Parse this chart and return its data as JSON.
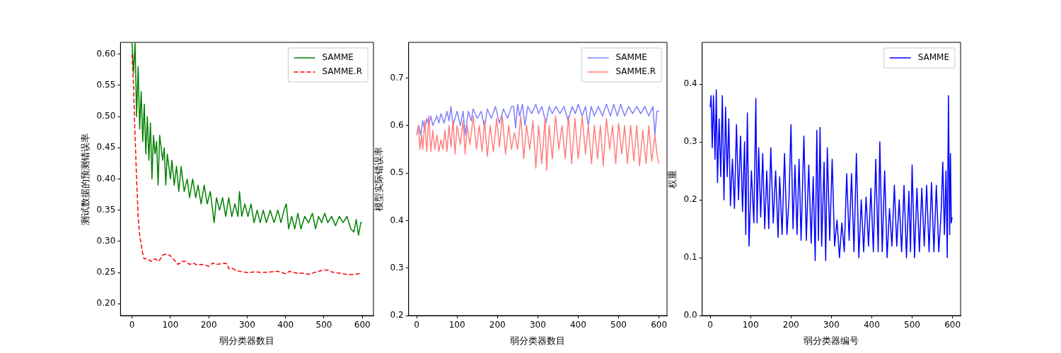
{
  "chart_data": [
    {
      "type": "line",
      "xlabel": "弱分类器数目",
      "ylabel": "测试数据的预测错误率",
      "xlim": [
        -30,
        629
      ],
      "xticks": [
        0,
        100,
        200,
        300,
        400,
        500,
        600
      ],
      "ylim": [
        0.181,
        0.619
      ],
      "yticks": [
        {
          "value": 0.2,
          "label": "0.20"
        },
        {
          "value": 0.25,
          "label": "0.25"
        },
        {
          "value": 0.3,
          "label": "0.30"
        },
        {
          "value": 0.35,
          "label": "0.35"
        },
        {
          "value": 0.4,
          "label": "0.40"
        },
        {
          "value": 0.45,
          "label": "0.45"
        },
        {
          "value": 0.5,
          "label": "0.50"
        },
        {
          "value": 0.55,
          "label": "0.55"
        },
        {
          "value": 0.6,
          "label": "0.60"
        }
      ],
      "legend": "top right",
      "grid": false,
      "series": [
        {
          "name": "SAMME",
          "color": "#008000",
          "line_style": "solid",
          "x": [
            0,
            4,
            8,
            12,
            16,
            20,
            24,
            28,
            32,
            36,
            40,
            44,
            48,
            52,
            56,
            60,
            64,
            68,
            72,
            80,
            84,
            88,
            92,
            100,
            104,
            110,
            116,
            122,
            128,
            136,
            144,
            150,
            158,
            166,
            172,
            180,
            188,
            196,
            204,
            210,
            214,
            220,
            228,
            236,
            244,
            252,
            260,
            268,
            276,
            280,
            286,
            294,
            302,
            310,
            318,
            326,
            334,
            342,
            350,
            360,
            370,
            380,
            388,
            396,
            402,
            408,
            416,
            424,
            432,
            440,
            450,
            460,
            470,
            478,
            486,
            494,
            502,
            510,
            520,
            530,
            540,
            550,
            560,
            570,
            578,
            584,
            590,
            596,
            599
          ],
          "values": [
            0.618,
            0.57,
            0.618,
            0.5,
            0.58,
            0.48,
            0.54,
            0.46,
            0.52,
            0.44,
            0.5,
            0.43,
            0.49,
            0.4,
            0.47,
            0.44,
            0.46,
            0.39,
            0.47,
            0.43,
            0.45,
            0.39,
            0.44,
            0.4,
            0.43,
            0.39,
            0.42,
            0.38,
            0.42,
            0.38,
            0.4,
            0.37,
            0.4,
            0.37,
            0.39,
            0.36,
            0.39,
            0.36,
            0.38,
            0.35,
            0.33,
            0.37,
            0.35,
            0.37,
            0.34,
            0.37,
            0.34,
            0.36,
            0.34,
            0.38,
            0.34,
            0.36,
            0.34,
            0.36,
            0.33,
            0.35,
            0.33,
            0.35,
            0.33,
            0.35,
            0.33,
            0.35,
            0.33,
            0.35,
            0.36,
            0.32,
            0.34,
            0.32,
            0.345,
            0.32,
            0.34,
            0.33,
            0.345,
            0.32,
            0.34,
            0.33,
            0.345,
            0.33,
            0.34,
            0.325,
            0.34,
            0.33,
            0.34,
            0.32,
            0.315,
            0.335,
            0.31,
            0.33,
            0.33
          ]
        },
        {
          "name": "SAMME.R",
          "color": "#ff0000",
          "line_style": "dashed",
          "x": [
            0,
            4,
            8,
            12,
            16,
            20,
            24,
            28,
            32,
            40,
            50,
            60,
            70,
            80,
            90,
            100,
            110,
            120,
            130,
            140,
            150,
            160,
            170,
            180,
            190,
            200,
            210,
            220,
            230,
            240,
            248,
            252,
            260,
            270,
            280,
            290,
            300,
            320,
            340,
            360,
            380,
            390,
            400,
            410,
            430,
            450,
            460,
            480,
            500,
            510,
            520,
            540,
            560,
            580,
            599
          ],
          "values": [
            0.6,
            0.55,
            0.47,
            0.4,
            0.34,
            0.31,
            0.295,
            0.28,
            0.272,
            0.272,
            0.268,
            0.272,
            0.268,
            0.278,
            0.28,
            0.277,
            0.27,
            0.263,
            0.268,
            0.268,
            0.263,
            0.265,
            0.262,
            0.263,
            0.262,
            0.26,
            0.265,
            0.263,
            0.264,
            0.265,
            0.264,
            0.256,
            0.257,
            0.254,
            0.252,
            0.251,
            0.25,
            0.251,
            0.25,
            0.251,
            0.252,
            0.25,
            0.248,
            0.252,
            0.249,
            0.249,
            0.247,
            0.251,
            0.254,
            0.254,
            0.251,
            0.249,
            0.247,
            0.247,
            0.249
          ]
        }
      ]
    },
    {
      "type": "line",
      "xlabel": "弱分类器数目",
      "ylabel": "模型实际错误率",
      "xlim": [
        -20,
        620
      ],
      "xticks": [
        0,
        100,
        200,
        300,
        400,
        500,
        600
      ],
      "ylim": [
        0.2,
        0.775
      ],
      "yticks": [
        0.2,
        0.3,
        0.4,
        0.5,
        0.6,
        0.7
      ],
      "legend": "top right",
      "grid": false,
      "series": [
        {
          "name": "SAMME",
          "color": "#8080ff",
          "line_style": "solid",
          "x": [
            0,
            5,
            10,
            15,
            20,
            25,
            30,
            35,
            40,
            50,
            55,
            60,
            68,
            75,
            80,
            85,
            90,
            100,
            108,
            115,
            120,
            128,
            135,
            140,
            150,
            160,
            168,
            175,
            185,
            195,
            205,
            215,
            225,
            235,
            240,
            245,
            250,
            255,
            262,
            268,
            275,
            285,
            295,
            302,
            310,
            320,
            328,
            336,
            345,
            355,
            365,
            375,
            385,
            393,
            400,
            410,
            418,
            425,
            432,
            440,
            450,
            460,
            470,
            480,
            488,
            497,
            505,
            515,
            525,
            535,
            545,
            555,
            565,
            575,
            585,
            590,
            595,
            600
          ],
          "values": [
            0.58,
            0.6,
            0.58,
            0.61,
            0.59,
            0.615,
            0.6,
            0.62,
            0.6,
            0.62,
            0.605,
            0.625,
            0.605,
            0.63,
            0.61,
            0.64,
            0.6,
            0.63,
            0.6,
            0.63,
            0.58,
            0.63,
            0.61,
            0.635,
            0.615,
            0.63,
            0.595,
            0.635,
            0.615,
            0.64,
            0.605,
            0.635,
            0.615,
            0.64,
            0.64,
            0.595,
            0.645,
            0.62,
            0.645,
            0.6,
            0.64,
            0.625,
            0.645,
            0.625,
            0.64,
            0.605,
            0.64,
            0.625,
            0.64,
            0.625,
            0.64,
            0.61,
            0.64,
            0.625,
            0.645,
            0.62,
            0.64,
            0.6,
            0.64,
            0.62,
            0.64,
            0.62,
            0.645,
            0.62,
            0.645,
            0.62,
            0.645,
            0.62,
            0.64,
            0.625,
            0.64,
            0.625,
            0.64,
            0.62,
            0.64,
            0.58,
            0.63,
            0.63
          ]
        },
        {
          "name": "SAMME.R",
          "color": "#ff8080",
          "line_style": "solid",
          "x": [
            0,
            4,
            8,
            12,
            15,
            20,
            25,
            30,
            35,
            40,
            45,
            50,
            55,
            60,
            65,
            70,
            75,
            80,
            85,
            90,
            95,
            100,
            108,
            115,
            120,
            125,
            132,
            140,
            148,
            155,
            162,
            168,
            175,
            182,
            190,
            198,
            205,
            212,
            220,
            228,
            235,
            242,
            250,
            258,
            265,
            272,
            280,
            288,
            295,
            302,
            310,
            318,
            322,
            328,
            336,
            344,
            352,
            360,
            368,
            376,
            384,
            392,
            400,
            410,
            418,
            425,
            433,
            440,
            448,
            455,
            462,
            470,
            478,
            485,
            493,
            500,
            508,
            515,
            522,
            530,
            538,
            545,
            552,
            560,
            568,
            575,
            582,
            590,
            595,
            600
          ],
          "values": [
            0.58,
            0.6,
            0.55,
            0.58,
            0.55,
            0.61,
            0.545,
            0.62,
            0.545,
            0.59,
            0.55,
            0.58,
            0.545,
            0.57,
            0.55,
            0.59,
            0.545,
            0.6,
            0.555,
            0.61,
            0.54,
            0.6,
            0.56,
            0.61,
            0.54,
            0.6,
            0.56,
            0.62,
            0.55,
            0.6,
            0.545,
            0.61,
            0.535,
            0.6,
            0.545,
            0.615,
            0.555,
            0.62,
            0.54,
            0.6,
            0.55,
            0.585,
            0.55,
            0.62,
            0.53,
            0.6,
            0.55,
            0.61,
            0.51,
            0.6,
            0.52,
            0.615,
            0.505,
            0.6,
            0.53,
            0.62,
            0.55,
            0.6,
            0.53,
            0.62,
            0.52,
            0.615,
            0.53,
            0.62,
            0.54,
            0.6,
            0.52,
            0.6,
            0.53,
            0.6,
            0.515,
            0.615,
            0.55,
            0.6,
            0.52,
            0.605,
            0.54,
            0.6,
            0.52,
            0.6,
            0.525,
            0.6,
            0.515,
            0.59,
            0.52,
            0.6,
            0.525,
            0.58,
            0.54,
            0.52
          ]
        }
      ]
    },
    {
      "type": "line",
      "xlabel": "弱分类器编号",
      "ylabel": "权重",
      "xlim": [
        -20,
        620
      ],
      "xticks": [
        0,
        100,
        200,
        300,
        400,
        500,
        600
      ],
      "ylim": [
        0,
        0.472
      ],
      "yticks": [
        {
          "value": 0,
          "label": "0.0"
        },
        0.1,
        0.2,
        0.3,
        0.4
      ],
      "legend": "top right",
      "grid": false,
      "series": [
        {
          "name": "SAMME",
          "color": "#0000ff",
          "line_style": "solid",
          "x": [
            0,
            2,
            5,
            8,
            12,
            15,
            18,
            22,
            26,
            30,
            34,
            38,
            42,
            46,
            50,
            55,
            60,
            65,
            70,
            75,
            80,
            85,
            88,
            92,
            96,
            102,
            108,
            113,
            116,
            120,
            125,
            130,
            135,
            140,
            145,
            150,
            156,
            162,
            168,
            172,
            178,
            184,
            190,
            195,
            200,
            205,
            210,
            215,
            220,
            225,
            232,
            238,
            244,
            250,
            255,
            260,
            264,
            268,
            272,
            276,
            282,
            286,
            290,
            296,
            302,
            308,
            314,
            320,
            326,
            332,
            338,
            344,
            350,
            356,
            362,
            368,
            374,
            380,
            386,
            392,
            398,
            404,
            410,
            416,
            420,
            426,
            432,
            438,
            444,
            450,
            456,
            462,
            468,
            474,
            480,
            486,
            492,
            496,
            500,
            506,
            512,
            518,
            524,
            530,
            536,
            542,
            548,
            554,
            560,
            566,
            572,
            576,
            580,
            584,
            587,
            590,
            593,
            595,
            597,
            599
          ],
          "values": [
            0.36,
            0.38,
            0.29,
            0.38,
            0.27,
            0.39,
            0.23,
            0.34,
            0.24,
            0.38,
            0.2,
            0.36,
            0.24,
            0.34,
            0.19,
            0.27,
            0.185,
            0.33,
            0.2,
            0.31,
            0.18,
            0.3,
            0.14,
            0.35,
            0.12,
            0.25,
            0.16,
            0.375,
            0.16,
            0.29,
            0.17,
            0.28,
            0.15,
            0.25,
            0.15,
            0.29,
            0.16,
            0.25,
            0.135,
            0.24,
            0.14,
            0.28,
            0.14,
            0.2,
            0.33,
            0.15,
            0.26,
            0.14,
            0.27,
            0.13,
            0.31,
            0.13,
            0.26,
            0.125,
            0.24,
            0.095,
            0.32,
            0.13,
            0.325,
            0.12,
            0.265,
            0.095,
            0.29,
            0.13,
            0.27,
            0.12,
            0.165,
            0.1,
            0.16,
            0.11,
            0.245,
            0.13,
            0.245,
            0.11,
            0.28,
            0.1,
            0.2,
            0.11,
            0.205,
            0.12,
            0.22,
            0.11,
            0.27,
            0.11,
            0.3,
            0.11,
            0.25,
            0.1,
            0.185,
            0.12,
            0.225,
            0.12,
            0.2,
            0.11,
            0.225,
            0.1,
            0.215,
            0.11,
            0.26,
            0.1,
            0.22,
            0.11,
            0.22,
            0.12,
            0.225,
            0.11,
            0.23,
            0.11,
            0.225,
            0.11,
            0.18,
            0.265,
            0.14,
            0.25,
            0.1,
            0.38,
            0.14,
            0.28,
            0.16,
            0.17
          ]
        }
      ]
    }
  ]
}
